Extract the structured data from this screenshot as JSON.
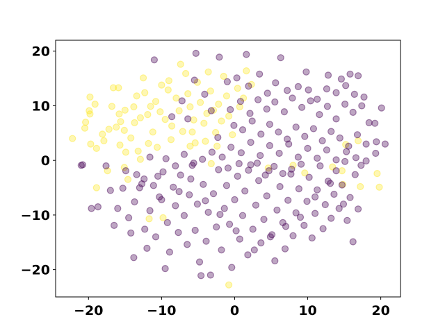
{
  "chart_data": {
    "type": "scatter",
    "title": "",
    "xlabel": "",
    "ylabel": "",
    "xlim": [
      -24.5,
      22.7
    ],
    "ylim": [
      -25,
      22
    ],
    "grid": false,
    "legend": "none",
    "xticks": [
      -20,
      -10,
      0,
      10,
      20
    ],
    "yticks": [
      -20,
      -10,
      0,
      10,
      20
    ],
    "xtick_labels": [
      "−20",
      "−10",
      "0",
      "10",
      "20"
    ],
    "ytick_labels": [
      "−20",
      "−10",
      "0",
      "10",
      "20"
    ],
    "point_alpha": 0.35,
    "series": [
      {
        "color": "#fde725",
        "points": [
          [
            -22.2,
            4.0
          ],
          [
            -20.4,
            7.0
          ],
          [
            -20.5,
            5.9
          ],
          [
            -19.9,
            9.1
          ],
          [
            -19.1,
            10.3
          ],
          [
            -19.8,
            11.6
          ],
          [
            -19.7,
            3.0
          ],
          [
            -18.9,
            2.2
          ],
          [
            -19.8,
            8.5
          ],
          [
            -18.1,
            4.8
          ],
          [
            -17.2,
            5.7
          ],
          [
            -17.9,
            3.6
          ],
          [
            -16.8,
            9.9
          ],
          [
            -16.6,
            13.3
          ],
          [
            -15.9,
            13.3
          ],
          [
            -15.8,
            8.5
          ],
          [
            -15.0,
            9.2
          ],
          [
            -15.6,
            7.1
          ],
          [
            -15.1,
            5.5
          ],
          [
            -15.7,
            2.8
          ],
          [
            -14.9,
            1.5
          ],
          [
            -14.2,
            4.1
          ],
          [
            -13.8,
            9.8
          ],
          [
            -13.4,
            11.8
          ],
          [
            -13.7,
            6.9
          ],
          [
            -12.9,
            7.8
          ],
          [
            -12.3,
            12.4
          ],
          [
            -12.5,
            15.1
          ],
          [
            -11.9,
            8.4
          ],
          [
            -11.2,
            5.2
          ],
          [
            -11.8,
            3.1
          ],
          [
            -10.8,
            10.8
          ],
          [
            -10.0,
            13.8
          ],
          [
            -10.2,
            8.9
          ],
          [
            -9.5,
            7.5
          ],
          [
            -9.1,
            12.9
          ],
          [
            -8.7,
            3.8
          ],
          [
            -8.0,
            11.4
          ],
          [
            -7.6,
            9.1
          ],
          [
            -7.1,
            5.3
          ],
          [
            -7.4,
            17.6
          ],
          [
            -6.7,
            15.9
          ],
          [
            -6.4,
            12.2
          ],
          [
            -6.1,
            9.8
          ],
          [
            -5.6,
            7.4
          ],
          [
            -5.4,
            3.2
          ],
          [
            -5.1,
            14.3
          ],
          [
            -4.7,
            10.6
          ],
          [
            -4.2,
            6.8
          ],
          [
            -3.8,
            8.6
          ],
          [
            -3.3,
            12.7
          ],
          [
            -2.9,
            9.2
          ],
          [
            -2.6,
            5.1
          ],
          [
            -2.2,
            10.3
          ],
          [
            -1.8,
            7.2
          ],
          [
            -1.5,
            15.4
          ],
          [
            -1.1,
            11.8
          ],
          [
            -0.8,
            8.1
          ],
          [
            -0.3,
            4.7
          ],
          [
            0.4,
            13.2
          ],
          [
            0.7,
            9.8
          ],
          [
            1.2,
            11.4
          ],
          [
            1.6,
            16.4
          ],
          [
            2.3,
            13.9
          ],
          [
            -5.8,
            5.2
          ],
          [
            -8.6,
            6.3
          ],
          [
            -10.6,
            2.4
          ],
          [
            -13.2,
            1.7
          ],
          [
            -15.1,
            -1.3
          ],
          [
            -17.4,
            -1.9
          ],
          [
            -18.9,
            -5.0
          ],
          [
            -14.6,
            -3.5
          ],
          [
            -11.7,
            -10.7
          ],
          [
            -9.8,
            -10.5
          ],
          [
            -3.2,
            -0.6
          ],
          [
            4.6,
            -1.4
          ],
          [
            8.0,
            -0.9
          ],
          [
            9.6,
            -2.3
          ],
          [
            13.4,
            -1.2
          ],
          [
            14.7,
            -1.9
          ],
          [
            15.2,
            2.9
          ],
          [
            16.9,
            3.6
          ],
          [
            19.5,
            -2.4
          ],
          [
            19.8,
            -4.9
          ],
          [
            17.2,
            -4.8
          ],
          [
            14.8,
            -4.4
          ],
          [
            -0.8,
            -22.8
          ],
          [
            -6.1,
            2.6
          ],
          [
            -4.0,
            3.5
          ],
          [
            -2.4,
            2.6
          ],
          [
            -12.9,
            0.2
          ],
          [
            -16.2,
            6.1
          ],
          [
            -11.5,
            9.9
          ],
          [
            -9.0,
            14.6
          ],
          [
            -3.6,
            16.2
          ]
        ]
      },
      {
        "color": "#440154",
        "points": [
          [
            -20.8,
            -0.8
          ],
          [
            -19.6,
            -8.8
          ],
          [
            -17.6,
            -1.0
          ],
          [
            -17.0,
            -5.5
          ],
          [
            -16.5,
            -11.9
          ],
          [
            -16.0,
            -8.8
          ],
          [
            -15.3,
            -5.1
          ],
          [
            -14.9,
            -1.9
          ],
          [
            -14.5,
            -10.5
          ],
          [
            -14.2,
            -13.3
          ],
          [
            -13.7,
            -7.6
          ],
          [
            -13.4,
            -2.6
          ],
          [
            -12.7,
            -4.3
          ],
          [
            -12.3,
            -12.6
          ],
          [
            -12.0,
            -16.1
          ],
          [
            -11.6,
            -9.2
          ],
          [
            -11.1,
            -4.6
          ],
          [
            -10.8,
            -14.0
          ],
          [
            -10.3,
            -6.7
          ],
          [
            -9.8,
            -2.1
          ],
          [
            -9.5,
            -19.8
          ],
          [
            -9.2,
            -11.4
          ],
          [
            -8.9,
            -16.8
          ],
          [
            -8.4,
            -4.9
          ],
          [
            -8.1,
            -8.3
          ],
          [
            -7.7,
            -13.2
          ],
          [
            -7.4,
            -2.7
          ],
          [
            -6.9,
            -10.1
          ],
          [
            -6.5,
            -15.4
          ],
          [
            -6.2,
            -6.3
          ],
          [
            -5.8,
            -0.9
          ],
          [
            -5.4,
            -12.8
          ],
          [
            -5.1,
            -8.0
          ],
          [
            -4.8,
            -18.6
          ],
          [
            -4.3,
            -4.4
          ],
          [
            -3.9,
            -14.8
          ],
          [
            -3.6,
            -9.5
          ],
          [
            -3.3,
            -21.0
          ],
          [
            -2.9,
            -6.1
          ],
          [
            -2.5,
            -12.2
          ],
          [
            -2.2,
            -1.7
          ],
          [
            -1.8,
            -16.4
          ],
          [
            -1.4,
            -8.8
          ],
          [
            -1.1,
            -4.6
          ],
          [
            -0.7,
            -11.7
          ],
          [
            -0.4,
            -19.6
          ],
          [
            0.0,
            -7.2
          ],
          [
            0.4,
            -2.9
          ],
          [
            0.7,
            -14.4
          ],
          [
            1.1,
            -10.1
          ],
          [
            1.4,
            -5.6
          ],
          [
            1.8,
            -17.3
          ],
          [
            2.2,
            -0.8
          ],
          [
            2.5,
            -12.6
          ],
          [
            2.9,
            -8.2
          ],
          [
            3.3,
            -3.7
          ],
          [
            3.6,
            -15.1
          ],
          [
            4.0,
            -10.8
          ],
          [
            4.4,
            -6.5
          ],
          [
            4.7,
            -1.9
          ],
          [
            5.1,
            -13.6
          ],
          [
            5.5,
            -18.4
          ],
          [
            5.8,
            -9.1
          ],
          [
            6.2,
            -4.8
          ],
          [
            6.6,
            -11.4
          ],
          [
            6.9,
            -16.2
          ],
          [
            7.3,
            -7.3
          ],
          [
            7.7,
            -2.5
          ],
          [
            8.0,
            -13.8
          ],
          [
            8.4,
            -9.6
          ],
          [
            8.8,
            -5.2
          ],
          [
            9.1,
            -0.7
          ],
          [
            9.5,
            -11.9
          ],
          [
            9.9,
            -7.5
          ],
          [
            10.2,
            -3.1
          ],
          [
            10.6,
            -14.2
          ],
          [
            11.0,
            -9.7
          ],
          [
            11.3,
            -5.4
          ],
          [
            11.7,
            -1.0
          ],
          [
            12.1,
            -12.5
          ],
          [
            12.4,
            -8.1
          ],
          [
            12.8,
            -3.8
          ],
          [
            13.2,
            -10.6
          ],
          [
            13.6,
            -6.2
          ],
          [
            13.9,
            -1.9
          ],
          [
            14.3,
            -8.8
          ],
          [
            14.7,
            -4.5
          ],
          [
            15.1,
            -0.2
          ],
          [
            15.4,
            -11.0
          ],
          [
            15.8,
            -6.8
          ],
          [
            16.2,
            -14.9
          ],
          [
            16.5,
            -2.6
          ],
          [
            16.9,
            -8.9
          ],
          [
            17.3,
            -0.9
          ],
          [
            -21.0,
            -0.9
          ],
          [
            -18.7,
            -8.5
          ],
          [
            -13.8,
            -17.8
          ],
          [
            -4.6,
            -21.1
          ],
          [
            -5.3,
            19.6
          ],
          [
            -11.0,
            18.4
          ],
          [
            -2.1,
            18.9
          ],
          [
            1.6,
            19.4
          ],
          [
            6.3,
            18.8
          ],
          [
            9.8,
            16.2
          ],
          [
            12.8,
            15.6
          ],
          [
            14.6,
            14.9
          ],
          [
            15.8,
            15.8
          ],
          [
            16.9,
            15.5
          ],
          [
            -1.0,
            14.4
          ],
          [
            0.3,
            15.1
          ],
          [
            1.9,
            13.6
          ],
          [
            3.4,
            15.8
          ],
          [
            4.5,
            12.3
          ],
          [
            5.6,
            14.2
          ],
          [
            7.2,
            12.8
          ],
          [
            8.7,
            13.5
          ],
          [
            10.1,
            12.9
          ],
          [
            11.3,
            11.2
          ],
          [
            12.6,
            13.1
          ],
          [
            13.9,
            12.4
          ],
          [
            15.2,
            13.7
          ],
          [
            16.4,
            12.1
          ],
          [
            17.7,
            11.6
          ],
          [
            -0.6,
            9.3
          ],
          [
            0.8,
            10.8
          ],
          [
            2.1,
            8.6
          ],
          [
            3.2,
            11.1
          ],
          [
            4.4,
            9.4
          ],
          [
            5.5,
            10.7
          ],
          [
            6.8,
            8.9
          ],
          [
            7.9,
            11.4
          ],
          [
            9.2,
            9.7
          ],
          [
            10.4,
            10.9
          ],
          [
            11.6,
            8.4
          ],
          [
            12.7,
            9.9
          ],
          [
            13.9,
            7.6
          ],
          [
            15.1,
            10.3
          ],
          [
            16.2,
            8.8
          ],
          [
            17.4,
            10.0
          ],
          [
            18.4,
            6.9
          ],
          [
            19.2,
            6.8
          ],
          [
            20.1,
            9.6
          ],
          [
            -0.1,
            6.4
          ],
          [
            1.1,
            5.6
          ],
          [
            2.4,
            7.2
          ],
          [
            3.6,
            4.8
          ],
          [
            4.8,
            6.6
          ],
          [
            6.0,
            5.2
          ],
          [
            7.2,
            3.9
          ],
          [
            8.4,
            6.1
          ],
          [
            9.6,
            4.4
          ],
          [
            10.8,
            5.8
          ],
          [
            12.0,
            3.6
          ],
          [
            13.2,
            5.3
          ],
          [
            14.4,
            4.1
          ],
          [
            15.6,
            2.6
          ],
          [
            16.8,
            4.7
          ],
          [
            18.0,
            3.0
          ],
          [
            19.4,
            3.4
          ],
          [
            20.6,
            3.0
          ],
          [
            -0.5,
            2.4
          ],
          [
            0.9,
            1.4
          ],
          [
            2.2,
            3.3
          ],
          [
            3.5,
            0.9
          ],
          [
            4.8,
            2.7
          ],
          [
            6.1,
            1.3
          ],
          [
            7.4,
            3.0
          ],
          [
            8.7,
            0.6
          ],
          [
            10.0,
            2.2
          ],
          [
            11.3,
            0.4
          ],
          [
            12.6,
            1.9
          ],
          [
            13.9,
            0.1
          ],
          [
            15.3,
            1.6
          ],
          [
            16.6,
            0.5
          ],
          [
            18.0,
            -0.1
          ],
          [
            19.3,
            1.3
          ],
          [
            -2.3,
            4.2
          ],
          [
            -3.1,
            1.5
          ],
          [
            -4.4,
            0.2
          ],
          [
            -5.6,
            -0.5
          ],
          [
            -6.9,
            1.1
          ],
          [
            -8.1,
            -1.0
          ],
          [
            -9.4,
            0.3
          ],
          [
            -10.5,
            -2.9
          ],
          [
            -11.6,
            0.6
          ],
          [
            -12.4,
            -3.4
          ],
          [
            -1.7,
            0.6
          ],
          [
            -0.9,
            -1.4
          ],
          [
            0.6,
            -0.6
          ],
          [
            1.9,
            -1.8
          ],
          [
            3.1,
            -0.5
          ],
          [
            4.2,
            -2.7
          ],
          [
            5.4,
            -1.1
          ],
          [
            6.6,
            -2.4
          ],
          [
            7.8,
            -1.6
          ],
          [
            -8.6,
            8.0
          ],
          [
            -6.4,
            7.6
          ],
          [
            -4.1,
            12.1
          ],
          [
            -3.2,
            9.1
          ],
          [
            -5.5,
            14.7
          ],
          [
            -7.2,
            10.9
          ],
          [
            -13.0,
            -5.0
          ],
          [
            -10.0,
            -7.2
          ],
          [
            -7.6,
            -5.7
          ],
          [
            -6.0,
            -3.4
          ],
          [
            -4.0,
            -7.4
          ],
          [
            -2.0,
            -9.9
          ],
          [
            0.2,
            -12.9
          ],
          [
            2.7,
            -16.4
          ],
          [
            4.9,
            -14.0
          ],
          [
            7.0,
            -12.1
          ],
          [
            9.0,
            -10.4
          ],
          [
            11.0,
            -6.7
          ],
          [
            13.1,
            -4.2
          ],
          [
            14.9,
            -8.0
          ]
        ]
      }
    ]
  }
}
